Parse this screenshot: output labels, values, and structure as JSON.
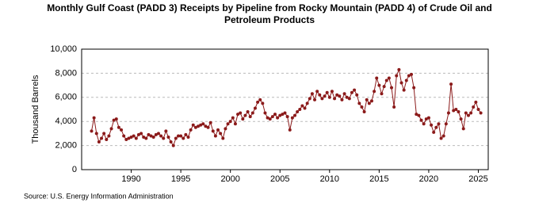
{
  "chart_data": {
    "type": "line",
    "title": "Monthly Gulf Coast (PADD 3) Receipts by Pipeline from Rocky Mountain (PADD 4) of Crude Oil and Petroleum Products",
    "y_label": "Thousand Barrels",
    "source": "Source: U.S. Energy Information Administration",
    "xlim": [
      1985,
      2026
    ],
    "xticks": [
      1990,
      1995,
      2000,
      2005,
      2010,
      2015,
      2020,
      2025
    ],
    "ylim": [
      0,
      10000
    ],
    "yticks": [
      0,
      {
        "value": 2000,
        "label": "2,000"
      },
      {
        "value": 4000,
        "label": "4,000"
      },
      {
        "value": 6000,
        "label": "6,000"
      },
      {
        "value": 8000,
        "label": "8,000"
      },
      {
        "value": 10000,
        "label": "10,000"
      }
    ],
    "grid": true,
    "series": [
      {
        "color": "#8b1a1a",
        "x": [
          1986,
          1986.25,
          1986.5,
          1986.75,
          1987,
          1987.25,
          1987.5,
          1987.75,
          1988,
          1988.25,
          1988.5,
          1988.75,
          1989,
          1989.25,
          1989.5,
          1989.75,
          1990,
          1990.25,
          1990.5,
          1990.75,
          1991,
          1991.25,
          1991.5,
          1991.75,
          1992,
          1992.25,
          1992.5,
          1992.75,
          1993,
          1993.25,
          1993.5,
          1993.75,
          1994,
          1994.25,
          1994.5,
          1994.75,
          1995,
          1995.25,
          1995.5,
          1995.75,
          1996,
          1996.25,
          1996.5,
          1996.75,
          1997,
          1997.25,
          1997.5,
          1997.75,
          1998,
          1998.25,
          1998.5,
          1998.75,
          1999,
          1999.25,
          1999.5,
          1999.75,
          2000,
          2000.25,
          2000.5,
          2000.75,
          2001,
          2001.25,
          2001.5,
          2001.75,
          2002,
          2002.25,
          2002.5,
          2002.75,
          2003,
          2003.25,
          2003.5,
          2003.75,
          2004,
          2004.25,
          2004.5,
          2004.75,
          2005,
          2005.25,
          2005.5,
          2005.75,
          2006,
          2006.25,
          2006.5,
          2006.75,
          2007,
          2007.25,
          2007.5,
          2007.75,
          2008,
          2008.25,
          2008.5,
          2008.75,
          2009,
          2009.25,
          2009.5,
          2009.75,
          2010,
          2010.25,
          2010.5,
          2010.75,
          2011,
          2011.25,
          2011.5,
          2011.75,
          2012,
          2012.25,
          2012.5,
          2012.75,
          2013,
          2013.25,
          2013.5,
          2013.75,
          2014,
          2014.25,
          2014.5,
          2014.75,
          2015,
          2015.25,
          2015.5,
          2015.75,
          2016,
          2016.25,
          2016.5,
          2016.75,
          2017,
          2017.25,
          2017.5,
          2017.75,
          2018,
          2018.25,
          2018.5,
          2018.75,
          2019,
          2019.25,
          2019.5,
          2019.75,
          2020,
          2020.25,
          2020.5,
          2020.75,
          2021,
          2021.25,
          2021.5,
          2021.75,
          2022,
          2022.25,
          2022.5,
          2022.75,
          2023,
          2023.25,
          2023.5,
          2023.75,
          2024,
          2024.25,
          2024.5,
          2024.75,
          2025,
          2025.25
        ],
        "values": [
          3200,
          4300,
          3000,
          2300,
          2600,
          3000,
          2500,
          2800,
          3400,
          4100,
          4200,
          3500,
          3300,
          2800,
          2500,
          2600,
          2700,
          2800,
          2600,
          2900,
          3000,
          2700,
          2600,
          2900,
          2800,
          2700,
          2900,
          3000,
          2800,
          2600,
          3200,
          2700,
          2300,
          2000,
          2600,
          2800,
          2800,
          2600,
          2900,
          2700,
          3300,
          3700,
          3500,
          3600,
          3700,
          3800,
          3600,
          3500,
          3900,
          3200,
          2800,
          3300,
          3000,
          2600,
          3400,
          3800,
          4000,
          4300,
          3800,
          4600,
          4700,
          4200,
          4500,
          4800,
          4400,
          4700,
          5100,
          5600,
          5800,
          5500,
          4700,
          4300,
          4200,
          4400,
          4600,
          4300,
          4500,
          4600,
          4700,
          4400,
          3300,
          4300,
          4500,
          4800,
          5000,
          5300,
          5100,
          5500,
          5900,
          6300,
          5800,
          6500,
          6200,
          5900,
          6100,
          6400,
          6000,
          6500,
          5900,
          6200,
          6100,
          5800,
          6300,
          6000,
          5900,
          6400,
          6600,
          6200,
          5500,
          5200,
          4800,
          5800,
          5500,
          5700,
          6500,
          7600,
          7000,
          6300,
          6900,
          7400,
          7600,
          6800,
          5200,
          7800,
          8300,
          7200,
          6600,
          7400,
          7800,
          7900,
          6800,
          4600,
          4500,
          4100,
          3800,
          4200,
          4300,
          3700,
          3100,
          3500,
          3800,
          2600,
          2800,
          3800,
          4700,
          7100,
          4900,
          5000,
          4800,
          4200,
          3400,
          4700,
          4500,
          4700,
          5200,
          5600,
          5000,
          4700
        ]
      }
    ]
  }
}
